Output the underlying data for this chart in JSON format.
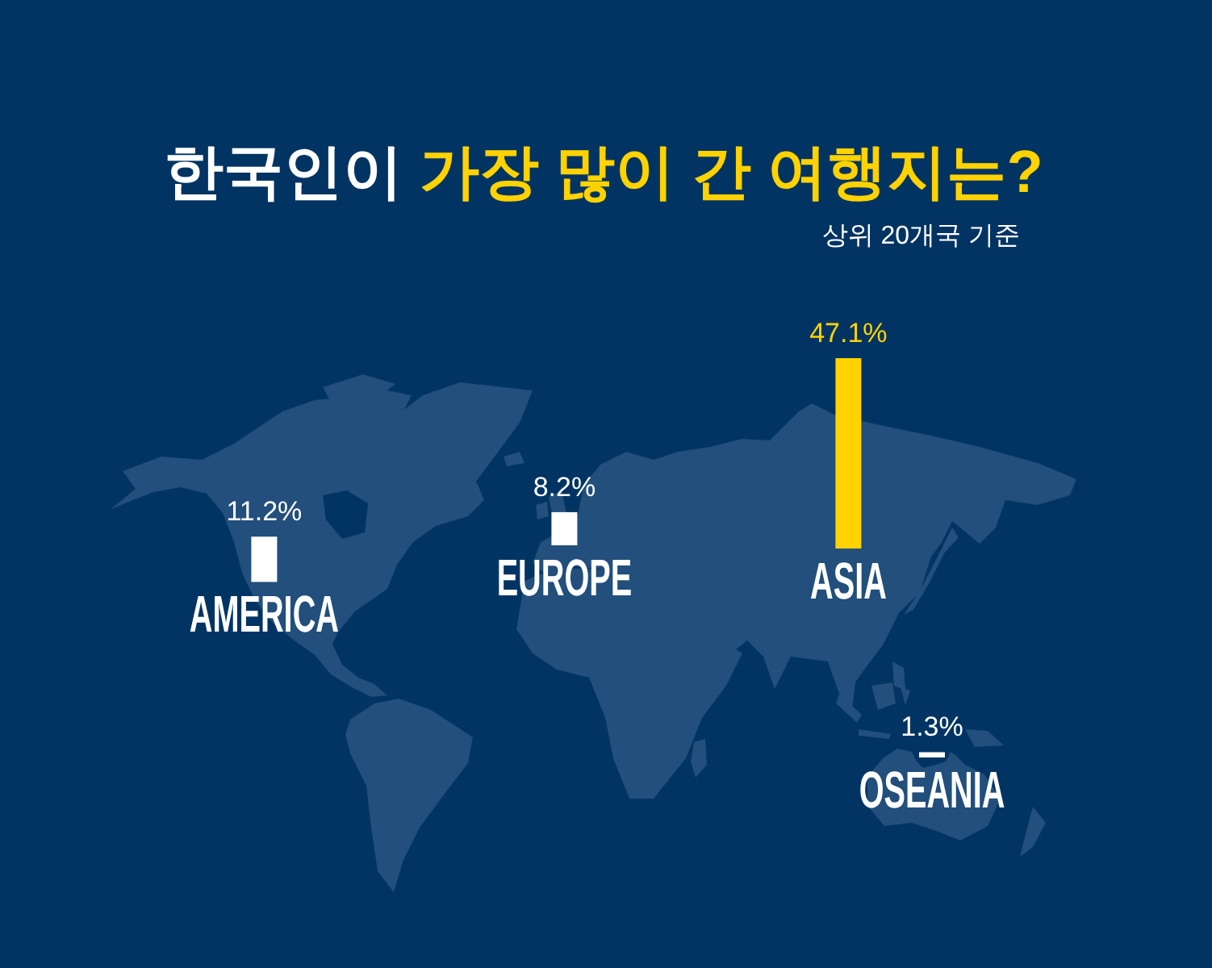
{
  "chart_data": [
    {
      "type": "bar",
      "title": "한국인이 가장 많이 간 여행지는?",
      "categories": [
        "AMERICA"
      ],
      "values": [
        11.2
      ],
      "colors": [
        "#ffffff"
      ],
      "value_labels": [
        "11.2%"
      ]
    },
    {
      "type": "bar",
      "categories": [
        "EUROPE"
      ],
      "values": [
        8.2
      ],
      "colors": [
        "#ffffff"
      ],
      "value_labels": [
        "8.2%"
      ]
    },
    {
      "type": "bar",
      "subtitle": "상위 20개국 기준",
      "categories": [
        "ASIA"
      ],
      "values": [
        47.1
      ],
      "colors": [
        "#ffd200"
      ],
      "value_labels": [
        "47.1%"
      ]
    },
    {
      "type": "bar",
      "categories": [
        "OSEANIA"
      ],
      "values": [
        1.3
      ],
      "colors": [
        "#ffffff"
      ],
      "value_labels": [
        "1.3%"
      ]
    }
  ]
}
